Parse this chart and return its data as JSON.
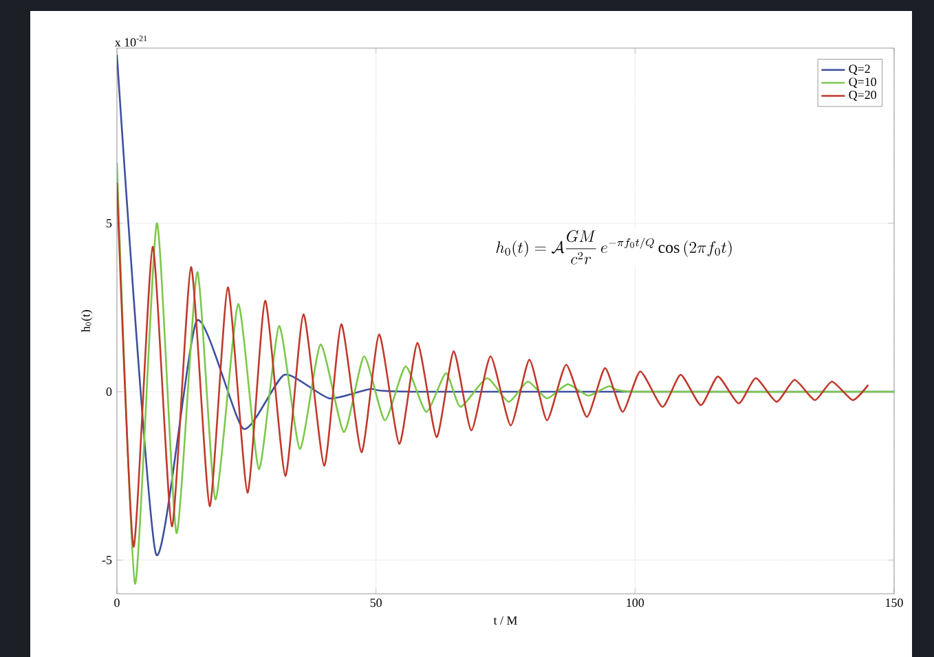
{
  "chart_data": {
    "type": "line",
    "xlabel": "t / M",
    "ylabel": "h$_{0}$(t)",
    "annotations": [
      "h_0(t) = \\mathcal{A}\\frac{GM}{c^2 r}\\, e^{-\\pi f_0 t/Q}\\cos\\left(2\\pi f_0 t\\right)",
      "x 10$^{-21}$"
    ],
    "xlim": [
      0,
      150
    ],
    "ylim": [
      -6,
      10.2
    ],
    "xticks": [
      0,
      50,
      100,
      150
    ],
    "yticks": [
      -5,
      0,
      5
    ],
    "grid": true,
    "legend": "top right",
    "line_style": "solid",
    "marker": "none",
    "series": [
      {
        "name": "Q=2",
        "color": "#3d4f9e",
        "x": [
          0,
          7.5,
          15.4,
          24.4,
          32.3,
          41,
          49,
          57,
          150
        ],
        "values": [
          10,
          -4.8,
          2.1,
          -1.1,
          0.5,
          -0.2,
          0.08,
          0,
          0
        ]
      },
      {
        "name": "Q=10",
        "color": "#7cc84a",
        "x": [
          0,
          3.5,
          7.7,
          11.5,
          15.5,
          19.0,
          23.4,
          27.4,
          31.3,
          35.3,
          39.3,
          43.8,
          47.7,
          51.7,
          55.7,
          59.7,
          63.5,
          66.3,
          71.4,
          75.6,
          79.3,
          83,
          87,
          91,
          95,
          100,
          150
        ],
        "values": [
          6.8,
          -5.7,
          5.0,
          -4.2,
          3.55,
          -3.2,
          2.6,
          -2.3,
          1.95,
          -1.7,
          1.4,
          -1.2,
          1.05,
          -0.85,
          0.75,
          -0.6,
          0.55,
          -0.45,
          0.4,
          -0.3,
          0.3,
          -0.2,
          0.22,
          -0.12,
          0.16,
          0,
          0
        ]
      },
      {
        "name": "Q=20",
        "color": "#c0392b",
        "x": [
          0,
          3.2,
          6.9,
          10.6,
          14.3,
          17.9,
          21.4,
          25.2,
          28.6,
          32.5,
          36,
          40,
          43.3,
          47.2,
          50.6,
          54.5,
          58,
          61.7,
          65,
          68.4,
          72.1,
          76,
          79.6,
          83,
          86.7,
          90.7,
          94.2,
          97.6,
          101,
          105.3,
          108.8,
          112.7,
          116,
          120,
          123.3,
          127.3,
          130.8,
          134.7,
          138,
          142,
          145
        ],
        "values": [
          6.2,
          -4.6,
          4.3,
          -4.0,
          3.7,
          -3.4,
          3.1,
          -3.0,
          2.7,
          -2.5,
          2.3,
          -2.2,
          2.0,
          -1.8,
          1.7,
          -1.55,
          1.45,
          -1.35,
          1.2,
          -1.15,
          1.05,
          -1.0,
          0.95,
          -0.85,
          0.8,
          -0.75,
          0.7,
          -0.6,
          0.6,
          -0.45,
          0.5,
          -0.4,
          0.45,
          -0.35,
          0.4,
          -0.3,
          0.35,
          -0.25,
          0.3,
          -0.25,
          0.2
        ]
      }
    ]
  }
}
